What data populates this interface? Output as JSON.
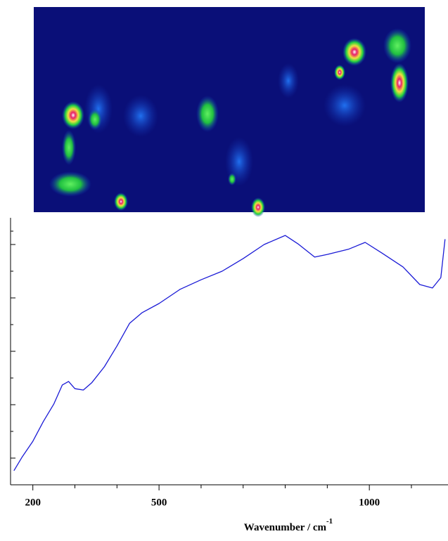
{
  "chart_data": {
    "type": "line",
    "xlabel": "Wavenumber / cm",
    "xlabel_sup": "-1",
    "xlim": [
      147,
      1187
    ],
    "ylim": [
      0,
      100
    ],
    "xticks": [
      200,
      500,
      1000
    ],
    "xminor": [
      300,
      400,
      600,
      700,
      800,
      900,
      1100
    ],
    "yticks": [
      10,
      30,
      50,
      70,
      90
    ],
    "yminor": [
      20,
      40,
      60,
      80,
      95
    ],
    "x": [
      155,
      175,
      200,
      225,
      250,
      270,
      285,
      300,
      320,
      340,
      370,
      400,
      430,
      460,
      500,
      550,
      600,
      650,
      700,
      750,
      800,
      830,
      870,
      900,
      950,
      990,
      1030,
      1080,
      1120,
      1150,
      1170,
      1180
    ],
    "series": [
      {
        "color": "#1a1ad6",
        "values": [
          5.3,
          10.5,
          16.3,
          23.7,
          30.3,
          37.4,
          38.7,
          36,
          35.5,
          38.2,
          44.2,
          52,
          60.5,
          64.5,
          67.9,
          73.2,
          76.8,
          80,
          84.7,
          90,
          93.4,
          90.3,
          85.3,
          86.3,
          88.2,
          90.8,
          86.8,
          81.6,
          75,
          73.7,
          77.6,
          92
        ]
      }
    ]
  }
}
